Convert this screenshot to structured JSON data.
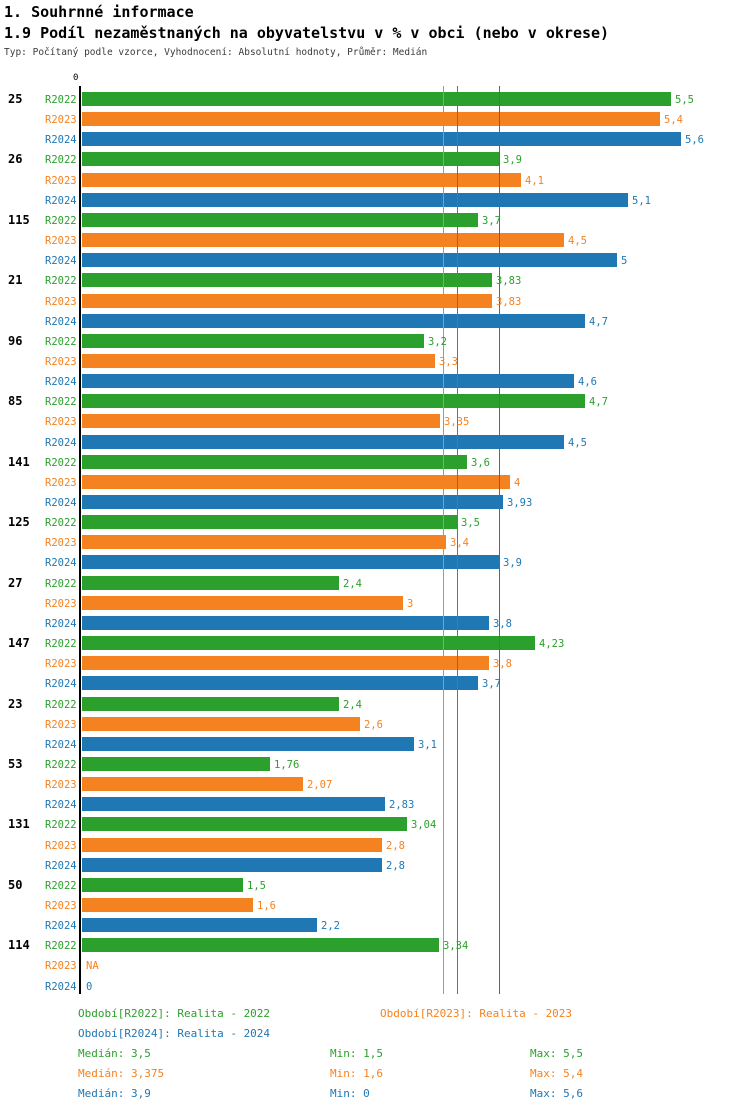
{
  "chart_data": {
    "type": "bar",
    "orientation": "horizontal",
    "title": "1. Souhrnné informace",
    "subtitle": "1.9 Podíl nezaměstnaných na obyvatelstvu v % v obci (nebo v okrese)",
    "meta": "Typ: Počítaný podle vzorce, Vyhodnocení: Absolutní hodnoty, Průměr: Medián",
    "axis_origin_label": "0",
    "xlim": [
      0,
      5.75
    ],
    "grid": false,
    "legend_position": "bottom",
    "series": [
      "R2022",
      "R2023",
      "R2024"
    ],
    "series_colors": [
      "#2ca02c",
      "#f58220",
      "#1f77b4"
    ],
    "groups": [
      {
        "category": "25",
        "values": [
          5.5,
          5.4,
          5.6
        ],
        "labels": [
          "5,5",
          "5,4",
          "5,6"
        ]
      },
      {
        "category": "26",
        "values": [
          3.9,
          4.1,
          5.1
        ],
        "labels": [
          "3,9",
          "4,1",
          "5,1"
        ]
      },
      {
        "category": "115",
        "values": [
          3.7,
          4.5,
          5.0
        ],
        "labels": [
          "3,7",
          "4,5",
          "5"
        ]
      },
      {
        "category": "21",
        "values": [
          3.83,
          3.83,
          4.7
        ],
        "labels": [
          "3,83",
          "3,83",
          "4,7"
        ]
      },
      {
        "category": "96",
        "values": [
          3.2,
          3.3,
          4.6
        ],
        "labels": [
          "3,2",
          "3,3",
          "4,6"
        ]
      },
      {
        "category": "85",
        "values": [
          4.7,
          3.35,
          4.5
        ],
        "labels": [
          "4,7",
          "3,35",
          "4,5"
        ]
      },
      {
        "category": "141",
        "values": [
          3.6,
          4.0,
          3.93
        ],
        "labels": [
          "3,6",
          "4",
          "3,93"
        ]
      },
      {
        "category": "125",
        "values": [
          3.5,
          3.4,
          3.9
        ],
        "labels": [
          "3,5",
          "3,4",
          "3,9"
        ]
      },
      {
        "category": "27",
        "values": [
          2.4,
          3.0,
          3.8
        ],
        "labels": [
          "2,4",
          "3",
          "3,8"
        ]
      },
      {
        "category": "147",
        "values": [
          4.23,
          3.8,
          3.7
        ],
        "labels": [
          "4,23",
          "3,8",
          "3,7"
        ]
      },
      {
        "category": "23",
        "values": [
          2.4,
          2.6,
          3.1
        ],
        "labels": [
          "2,4",
          "2,6",
          "3,1"
        ]
      },
      {
        "category": "53",
        "values": [
          1.76,
          2.07,
          2.83
        ],
        "labels": [
          "1,76",
          "2,07",
          "2,83"
        ]
      },
      {
        "category": "131",
        "values": [
          3.04,
          2.8,
          2.8
        ],
        "labels": [
          "3,04",
          "2,8",
          "2,8"
        ]
      },
      {
        "category": "50",
        "values": [
          1.5,
          1.6,
          2.2
        ],
        "labels": [
          "1,5",
          "1,6",
          "2,2"
        ]
      },
      {
        "category": "114",
        "values": [
          3.34,
          null,
          0
        ],
        "labels": [
          "3,34",
          "NA",
          "0"
        ]
      }
    ],
    "median_lines": [
      {
        "series": "R2023",
        "value": 3.375,
        "color": "#f58220"
      },
      {
        "series": "R2022",
        "value": 3.5,
        "color": "#2ca02c"
      },
      {
        "series": "R2024",
        "value": 3.9,
        "color": "#1f77b4"
      }
    ],
    "legend": [
      {
        "label": "Období[R2022]: Realita - 2022",
        "color": "#2ca02c"
      },
      {
        "label": "Období[R2023]: Realita - 2023",
        "color": "#f58220"
      },
      {
        "label": "Období[R2024]: Realita - 2024",
        "color": "#1f77b4"
      }
    ],
    "stats": [
      {
        "median_label": "Medián: 3,5",
        "min_label": "Min: 1,5",
        "max_label": "Max: 5,5",
        "color": "#2ca02c"
      },
      {
        "median_label": "Medián: 3,375",
        "min_label": "Min: 1,6",
        "max_label": "Max: 5,4",
        "color": "#f58220"
      },
      {
        "median_label": "Medián: 3,9",
        "min_label": "Min: 0",
        "max_label": "Max: 5,6",
        "color": "#1f77b4"
      }
    ]
  }
}
